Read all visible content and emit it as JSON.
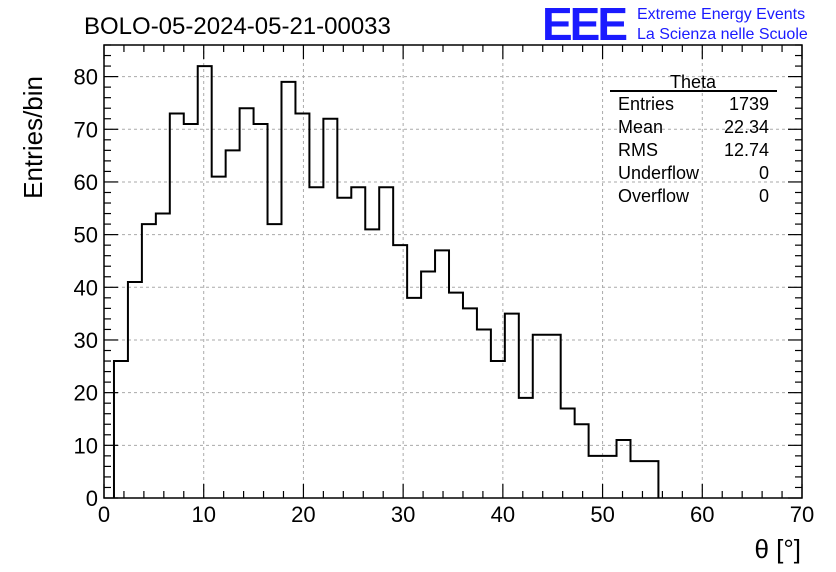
{
  "chart_data": {
    "type": "histogram",
    "title": "BOLO-05-2024-05-21-00033",
    "xlabel": "θ [°]",
    "ylabel": "Entries/bin",
    "xlim": [
      0,
      70
    ],
    "ylim": [
      0,
      86
    ],
    "xticks": [
      "0",
      "10",
      "20",
      "30",
      "40",
      "50",
      "60",
      "70"
    ],
    "yticks": [
      "0",
      "10",
      "20",
      "30",
      "40",
      "50",
      "60",
      "70",
      "80"
    ],
    "grid": true,
    "bin_edges_start": 1.0,
    "bin_width": 1.4,
    "values": [
      26,
      41,
      52,
      54,
      73,
      71,
      82,
      61,
      66,
      74,
      71,
      52,
      79,
      73,
      59,
      72,
      57,
      59,
      51,
      59,
      48,
      38,
      43,
      47,
      39,
      36,
      32,
      26,
      35,
      19,
      31,
      31,
      17,
      14,
      8,
      8,
      11,
      7,
      7
    ],
    "stats": {
      "name": "Theta",
      "rows": [
        {
          "label": "Entries",
          "value": "1739"
        },
        {
          "label": "Mean",
          "value": "22.34"
        },
        {
          "label": "RMS",
          "value": "12.74"
        },
        {
          "label": "Underflow",
          "value": "0"
        },
        {
          "label": "Overflow",
          "value": "0"
        }
      ]
    }
  },
  "branding": {
    "logo_text": "EEE",
    "line1": "Extreme Energy Events",
    "line2": "La Scienza nelle Scuole",
    "color": "#1a1aff"
  }
}
